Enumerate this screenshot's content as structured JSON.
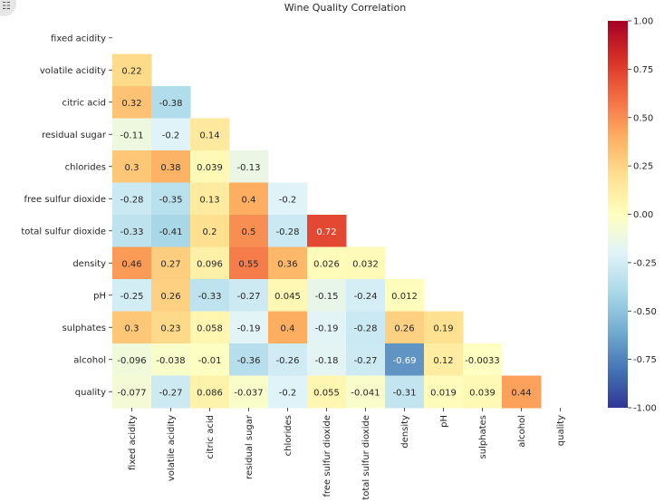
{
  "chart_data": {
    "type": "heatmap",
    "title": "Wine Quality Correlation",
    "variables": [
      "fixed acidity",
      "volatile acidity",
      "citric acid",
      "residual sugar",
      "chlorides",
      "free sulfur dioxide",
      "total sulfur dioxide",
      "density",
      "pH",
      "sulphates",
      "alcohol",
      "quality"
    ],
    "mask": "upper-triangle-including-diagonal",
    "lower_triangle": [
      [],
      [
        "0.22"
      ],
      [
        "0.32",
        "-0.38"
      ],
      [
        "-0.11",
        "-0.2",
        "0.14"
      ],
      [
        "0.3",
        "0.38",
        "0.039",
        "-0.13"
      ],
      [
        "-0.28",
        "-0.35",
        "0.13",
        "0.4",
        "-0.2"
      ],
      [
        "-0.33",
        "-0.41",
        "0.2",
        "0.5",
        "-0.28",
        "0.72"
      ],
      [
        "0.46",
        "0.27",
        "0.096",
        "0.55",
        "0.36",
        "0.026",
        "0.032"
      ],
      [
        "-0.25",
        "0.26",
        "-0.33",
        "-0.27",
        "0.045",
        "-0.15",
        "-0.24",
        "0.012"
      ],
      [
        "0.3",
        "0.23",
        "0.058",
        "-0.19",
        "0.4",
        "-0.19",
        "-0.28",
        "0.26",
        "0.19"
      ],
      [
        "-0.096",
        "-0.038",
        "-0.01",
        "-0.36",
        "-0.26",
        "-0.18",
        "-0.27",
        "-0.69",
        "0.12",
        "-0.0033"
      ],
      [
        "-0.077",
        "-0.27",
        "0.086",
        "-0.037",
        "-0.2",
        "0.055",
        "-0.041",
        "-0.31",
        "0.019",
        "0.039",
        "0.44"
      ]
    ],
    "colormap": "RdYlBu_r",
    "vmin": -1.0,
    "vmax": 1.0,
    "colorbar_ticks": [
      "1.00",
      "0.75",
      "0.50",
      "0.25",
      "0.00",
      "-0.25",
      "-0.50",
      "-0.75",
      "-1.00"
    ],
    "colorbar_tick_values": [
      1.0,
      0.75,
      0.5,
      0.25,
      0.0,
      -0.25,
      -0.5,
      -0.75,
      -1.0
    ],
    "annotations": true,
    "grid": false,
    "legend": "colorbar-right"
  }
}
